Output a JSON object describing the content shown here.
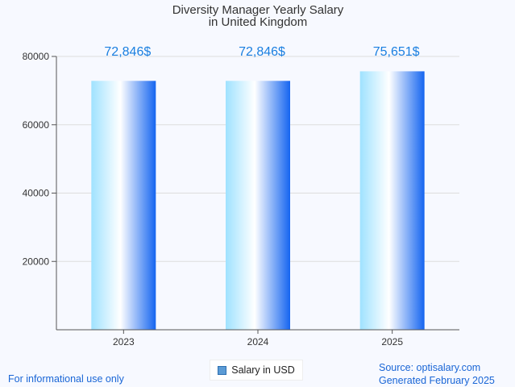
{
  "chart_data": {
    "type": "bar",
    "title": [
      "Diversity Manager Yearly Salary",
      "in United Kingdom"
    ],
    "categories": [
      "2023",
      "2024",
      "2025"
    ],
    "series": [
      {
        "name": "Salary in USD",
        "values": [
          72846,
          72846,
          75651
        ]
      }
    ],
    "data_labels": [
      "72,846$",
      "72,846$",
      "75,651$"
    ],
    "ylim": [
      0,
      80000
    ],
    "yticks": [
      20000,
      40000,
      60000,
      80000
    ],
    "xlabel": "",
    "ylabel": "",
    "grid": true,
    "legend_position": "bottom-center",
    "colors": {
      "bar_light": "#9fe2ff",
      "bar_mid": "#ffffff",
      "bar_dark": "#1565f0",
      "label": "#1a7fe0"
    }
  },
  "footer": {
    "note": "For informational use only",
    "source": "Source: optisalary.com",
    "generated": "Generated February 2025"
  }
}
